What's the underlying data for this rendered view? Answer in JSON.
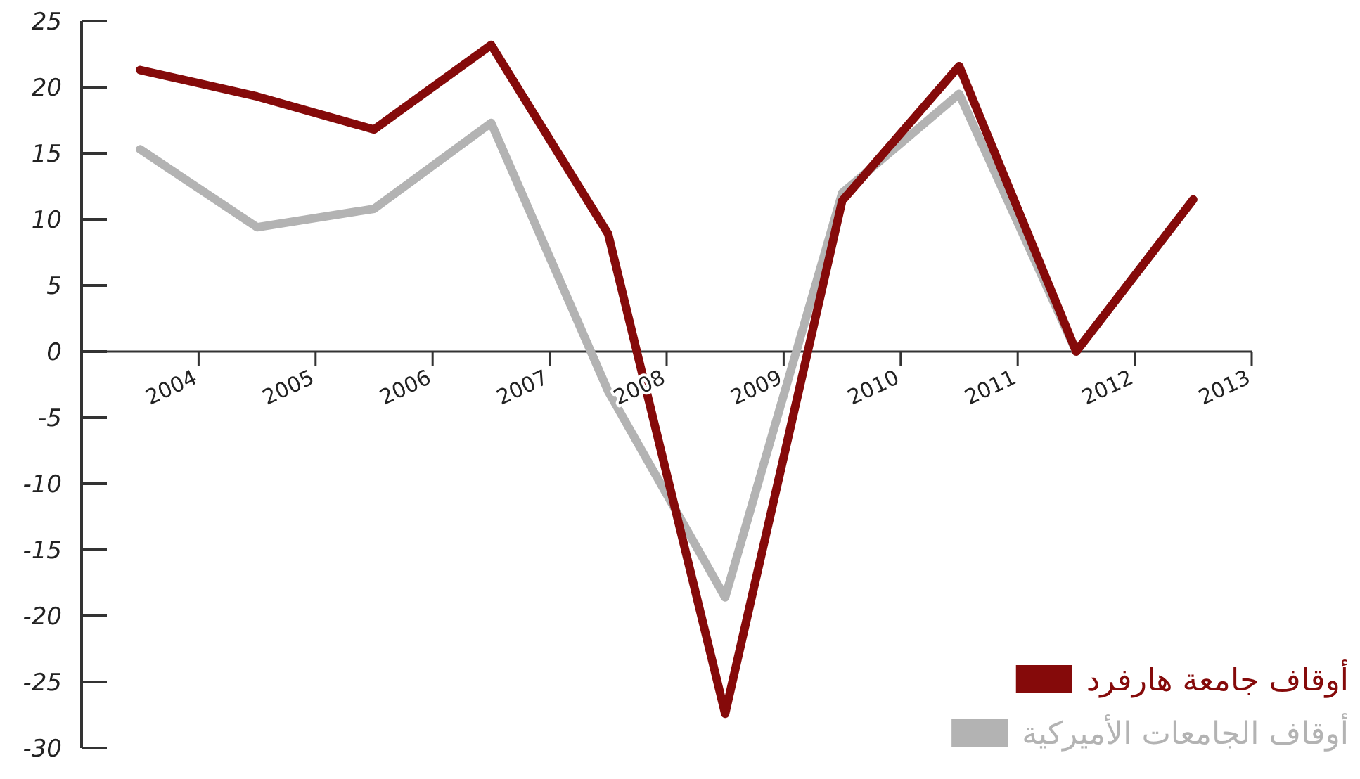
{
  "chart_data": {
    "type": "line",
    "x": [
      2003.5,
      2004.5,
      2005.5,
      2006.5,
      2007.5,
      2008.5,
      2009.5,
      2010.5,
      2011.5,
      2012.5
    ],
    "series": [
      {
        "name": "أوقاف الجامعات الأميركية",
        "color": "#b3b3b3",
        "values": [
          15.3,
          9.4,
          10.8,
          17.3,
          -3,
          -18.6,
          12,
          19.5,
          0,
          11.5
        ]
      },
      {
        "name": "أوقاف جامعة هارفرد",
        "color": "#850a0a",
        "values": [
          21.3,
          19.3,
          16.8,
          23.2,
          8.9,
          -27.4,
          11.4,
          21.6,
          0,
          11.5
        ]
      }
    ],
    "xlim": [
      2003,
      2013
    ],
    "xticks": [
      2004,
      2005,
      2006,
      2007,
      2008,
      2009,
      2010,
      2011,
      2012,
      2013
    ],
    "ylim": [
      -30,
      25
    ],
    "yticks": [
      25,
      20,
      15,
      10,
      5,
      0,
      -5,
      -10,
      -15,
      -20,
      -25,
      -30
    ],
    "legend": "bottom right"
  }
}
